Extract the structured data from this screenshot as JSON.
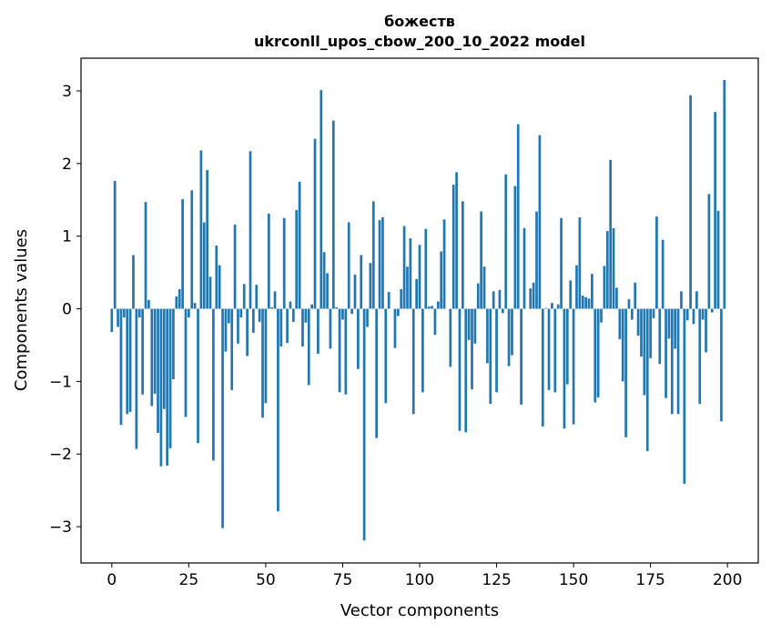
{
  "chart_data": {
    "type": "bar",
    "title": "божеств",
    "subtitle": "ukrconll_upos_cbow_200_10_2022 model",
    "xlabel": "Vector components",
    "ylabel": "Components values",
    "xlim": [
      -10,
      210
    ],
    "ylim": [
      -3.5,
      3.45
    ],
    "xticks": [
      0,
      25,
      50,
      75,
      100,
      125,
      150,
      175,
      200
    ],
    "xtick_labels": [
      "0",
      "25",
      "50",
      "75",
      "100",
      "125",
      "150",
      "175",
      "200"
    ],
    "yticks": [
      -3,
      -2,
      -1,
      0,
      1,
      2,
      3
    ],
    "ytick_labels": [
      "−3",
      "−2",
      "−1",
      "0",
      "1",
      "2",
      "3"
    ],
    "bar_color": "#1f77b4",
    "grid": false,
    "x": [
      0,
      1,
      2,
      3,
      4,
      5,
      6,
      7,
      8,
      9,
      10,
      11,
      12,
      13,
      14,
      15,
      16,
      17,
      18,
      19,
      20,
      21,
      22,
      23,
      24,
      25,
      26,
      27,
      28,
      29,
      30,
      31,
      32,
      33,
      34,
      35,
      36,
      37,
      38,
      39,
      40,
      41,
      42,
      43,
      44,
      45,
      46,
      47,
      48,
      49,
      50,
      51,
      52,
      53,
      54,
      55,
      56,
      57,
      58,
      59,
      60,
      61,
      62,
      63,
      64,
      65,
      66,
      67,
      68,
      69,
      70,
      71,
      72,
      73,
      74,
      75,
      76,
      77,
      78,
      79,
      80,
      81,
      82,
      83,
      84,
      85,
      86,
      87,
      88,
      89,
      90,
      91,
      92,
      93,
      94,
      95,
      96,
      97,
      98,
      99,
      100,
      101,
      102,
      103,
      104,
      105,
      106,
      107,
      108,
      109,
      110,
      111,
      112,
      113,
      114,
      115,
      116,
      117,
      118,
      119,
      120,
      121,
      122,
      123,
      124,
      125,
      126,
      127,
      128,
      129,
      130,
      131,
      132,
      133,
      134,
      135,
      136,
      137,
      138,
      139,
      140,
      141,
      142,
      143,
      144,
      145,
      146,
      147,
      148,
      149,
      150,
      151,
      152,
      153,
      154,
      155,
      156,
      157,
      158,
      159,
      160,
      161,
      162,
      163,
      164,
      165,
      166,
      167,
      168,
      169,
      170,
      171,
      172,
      173,
      174,
      175,
      176,
      177,
      178,
      179,
      180,
      181,
      182,
      183,
      184,
      185,
      186,
      187,
      188,
      189,
      190,
      191,
      192,
      193,
      194,
      195,
      196,
      197,
      198,
      199
    ],
    "values": [
      -0.32,
      1.76,
      -0.25,
      -1.6,
      -0.12,
      -1.45,
      -1.42,
      0.74,
      -1.93,
      -0.12,
      -1.18,
      1.47,
      0.12,
      -1.34,
      -1.17,
      -1.71,
      -2.17,
      -1.38,
      -2.16,
      -1.92,
      -0.97,
      0.17,
      0.27,
      1.51,
      -1.49,
      -0.12,
      1.63,
      0.08,
      -1.85,
      2.18,
      1.19,
      1.91,
      0.44,
      -2.09,
      0.87,
      0.6,
      -3.02,
      -0.59,
      -0.2,
      -1.12,
      1.16,
      -0.48,
      -0.12,
      0.34,
      -0.65,
      2.17,
      -0.33,
      0.33,
      -0.18,
      -1.5,
      -1.3,
      1.31,
      0.02,
      0.24,
      -2.79,
      -0.52,
      1.25,
      -0.47,
      0.1,
      -0.18,
      1.36,
      1.75,
      -0.52,
      -0.19,
      -1.05,
      0.06,
      2.34,
      -0.62,
      3.01,
      0.78,
      0.49,
      -0.55,
      2.59,
      0.02,
      -1.15,
      -0.15,
      -1.18,
      1.19,
      -0.07,
      0.47,
      -0.83,
      0.74,
      -3.19,
      -0.25,
      0.63,
      1.48,
      -1.78,
      1.22,
      1.26,
      -1.3,
      0.23,
      0.0,
      -0.54,
      -0.1,
      0.27,
      1.14,
      0.58,
      0.97,
      -1.45,
      0.41,
      0.88,
      -1.15,
      1.1,
      0.03,
      0.04,
      -0.36,
      0.1,
      0.79,
      1.23,
      0.0,
      -0.8,
      1.71,
      1.88,
      -1.68,
      1.48,
      -1.7,
      -0.43,
      -1.11,
      -0.48,
      0.35,
      1.34,
      0.58,
      -0.75,
      -1.31,
      0.24,
      -1.15,
      0.26,
      -0.06,
      1.85,
      -0.79,
      -0.64,
      1.69,
      2.54,
      -1.32,
      1.11,
      0.0,
      0.28,
      0.36,
      1.34,
      2.39,
      -1.62,
      0.01,
      -1.12,
      0.08,
      -1.15,
      0.06,
      1.25,
      -1.65,
      -1.04,
      0.39,
      -1.59,
      0.6,
      1.26,
      0.18,
      0.16,
      0.14,
      0.48,
      -1.29,
      -1.22,
      -0.19,
      0.59,
      1.07,
      2.05,
      1.11,
      0.29,
      -0.42,
      -1.0,
      -1.77,
      0.13,
      -0.15,
      0.36,
      -0.37,
      -0.66,
      -1.19,
      -1.96,
      -0.68,
      -0.13,
      1.27,
      -0.76,
      0.95,
      -1.23,
      -0.41,
      -1.45,
      -0.55,
      -1.45,
      0.24,
      -2.41,
      -0.16,
      2.94,
      -0.21,
      0.24,
      -1.31,
      -0.15,
      -0.6,
      1.58,
      -0.05,
      2.71,
      1.35,
      -1.55,
      3.15
    ]
  }
}
